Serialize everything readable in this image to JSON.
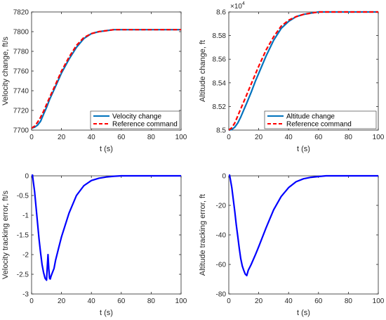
{
  "colors": {
    "solid_top": "#0072BD",
    "reference": "#FF0000",
    "solid_bottom": "#0000FF",
    "axes": "#262626"
  },
  "chart_data": [
    {
      "type": "line",
      "xlabel": "t (s)",
      "ylabel": "Velocity change, ft/s",
      "xlim": [
        0,
        100
      ],
      "ylim": [
        7700,
        7820
      ],
      "xticks": [
        "0",
        "20",
        "40",
        "60",
        "80",
        "100"
      ],
      "yticks": [
        "7700",
        "7720",
        "7740",
        "7760",
        "7780",
        "7800",
        "7820"
      ],
      "exponent_label": "",
      "grid": false,
      "legend_position": "bottom-right",
      "series": [
        {
          "name": "Velocity change",
          "style": "solid",
          "color": "#0072BD",
          "x": [
            0,
            2,
            4,
            6,
            8,
            10,
            12,
            15,
            18,
            20,
            25,
            30,
            35,
            40,
            45,
            50,
            55,
            60,
            70,
            80,
            90,
            100
          ],
          "y": [
            7702,
            7703,
            7705,
            7709,
            7716,
            7723,
            7731,
            7741,
            7751,
            7758,
            7772,
            7784,
            7793,
            7798,
            7800,
            7801,
            7802,
            7802,
            7802,
            7802,
            7802,
            7802
          ]
        },
        {
          "name": "Reference command",
          "style": "dashed",
          "color": "#FF0000",
          "x": [
            0,
            2,
            4,
            6,
            8,
            10,
            12,
            15,
            18,
            20,
            25,
            30,
            35,
            40,
            45,
            50,
            55,
            60,
            70,
            80,
            90,
            100
          ],
          "y": [
            7702,
            7704,
            7708,
            7713,
            7719,
            7726,
            7733,
            7743,
            7753,
            7760,
            7774,
            7786,
            7794,
            7798,
            7800,
            7801,
            7802,
            7802,
            7802,
            7802,
            7802,
            7802
          ]
        }
      ]
    },
    {
      "type": "line",
      "xlabel": "t (s)",
      "ylabel": "Altitude change, ft",
      "xlim": [
        0,
        100
      ],
      "ylim": [
        8.5,
        8.6
      ],
      "xticks": [
        "0",
        "20",
        "40",
        "60",
        "80",
        "100"
      ],
      "yticks": [
        "8.5",
        "8.52",
        "8.54",
        "8.56",
        "8.58",
        "8.6"
      ],
      "exponent_label": "10",
      "exponent_power": "4",
      "grid": false,
      "legend_position": "bottom-right",
      "series": [
        {
          "name": "Altitude change",
          "style": "solid",
          "color": "#0072BD",
          "x": [
            0,
            2,
            4,
            6,
            8,
            10,
            12,
            15,
            18,
            20,
            25,
            30,
            35,
            40,
            45,
            50,
            55,
            60,
            70,
            80,
            90,
            100
          ],
          "y": [
            8.5,
            8.5005,
            8.5025,
            8.506,
            8.511,
            8.517,
            8.523,
            8.532,
            8.542,
            8.548,
            8.563,
            8.576,
            8.586,
            8.592,
            8.596,
            8.598,
            8.599,
            8.6,
            8.6,
            8.6,
            8.6,
            8.6
          ]
        },
        {
          "name": "Reference command",
          "style": "dashed",
          "color": "#FF0000",
          "x": [
            0,
            2,
            4,
            6,
            8,
            10,
            12,
            15,
            18,
            20,
            25,
            30,
            35,
            40,
            45,
            50,
            55,
            60,
            70,
            80,
            90,
            100
          ],
          "y": [
            8.5,
            8.502,
            8.506,
            8.512,
            8.518,
            8.524,
            8.53,
            8.539,
            8.548,
            8.554,
            8.568,
            8.579,
            8.588,
            8.593,
            8.596,
            8.598,
            8.599,
            8.6,
            8.6,
            8.6,
            8.6,
            8.6
          ]
        }
      ]
    },
    {
      "type": "line",
      "xlabel": "t (s)",
      "ylabel": "Velocity tracking error, ft/s",
      "xlim": [
        0,
        100
      ],
      "ylim": [
        -3,
        0
      ],
      "xticks": [
        "0",
        "20",
        "40",
        "60",
        "80",
        "100"
      ],
      "yticks": [
        "-3",
        "-2.5",
        "-2",
        "-1.5",
        "-1",
        "-0.5",
        "0"
      ],
      "exponent_label": "",
      "grid": false,
      "legend_position": "none",
      "series": [
        {
          "style": "solid",
          "color": "#0000FF",
          "x": [
            0,
            0.5,
            1,
            2,
            3,
            4,
            5,
            6,
            7,
            8,
            9,
            10,
            10.5,
            11,
            11.5,
            12,
            12.5,
            13,
            14,
            15,
            16,
            18,
            20,
            25,
            30,
            35,
            40,
            45,
            50,
            55,
            60,
            70,
            80,
            90,
            100
          ],
          "y": [
            0,
            0.05,
            -0.1,
            -0.4,
            -0.8,
            -1.2,
            -1.6,
            -1.95,
            -2.25,
            -2.45,
            -2.6,
            -2.65,
            -2.3,
            -2.0,
            -2.35,
            -2.6,
            -2.62,
            -2.55,
            -2.45,
            -2.35,
            -2.15,
            -1.85,
            -1.55,
            -0.95,
            -0.5,
            -0.25,
            -0.12,
            -0.06,
            -0.03,
            -0.01,
            0,
            0,
            0,
            0,
            0
          ]
        }
      ]
    },
    {
      "type": "line",
      "xlabel": "t (s)",
      "ylabel": "Altitude tracking error, ft",
      "xlim": [
        0,
        100
      ],
      "ylim": [
        -80,
        0
      ],
      "xticks": [
        "0",
        "20",
        "40",
        "60",
        "80",
        "100"
      ],
      "yticks": [
        "-80",
        "-60",
        "-40",
        "-20",
        "0"
      ],
      "exponent_label": "",
      "grid": false,
      "legend_position": "none",
      "series": [
        {
          "style": "solid",
          "color": "#0000FF",
          "x": [
            0,
            0.5,
            1,
            2,
            3,
            4,
            5,
            6,
            7,
            8,
            9,
            10,
            11,
            12,
            13,
            14,
            15,
            18,
            20,
            25,
            30,
            35,
            40,
            45,
            50,
            55,
            60,
            65,
            70,
            80,
            90,
            100
          ],
          "y": [
            0,
            0.5,
            -2,
            -8,
            -16,
            -24,
            -33,
            -41,
            -49,
            -56,
            -61,
            -64,
            -66.5,
            -67.5,
            -64,
            -62,
            -60,
            -53,
            -48,
            -35,
            -23,
            -14,
            -8,
            -4,
            -2,
            -1,
            -0.5,
            0,
            0,
            0,
            0,
            0
          ]
        }
      ]
    }
  ]
}
